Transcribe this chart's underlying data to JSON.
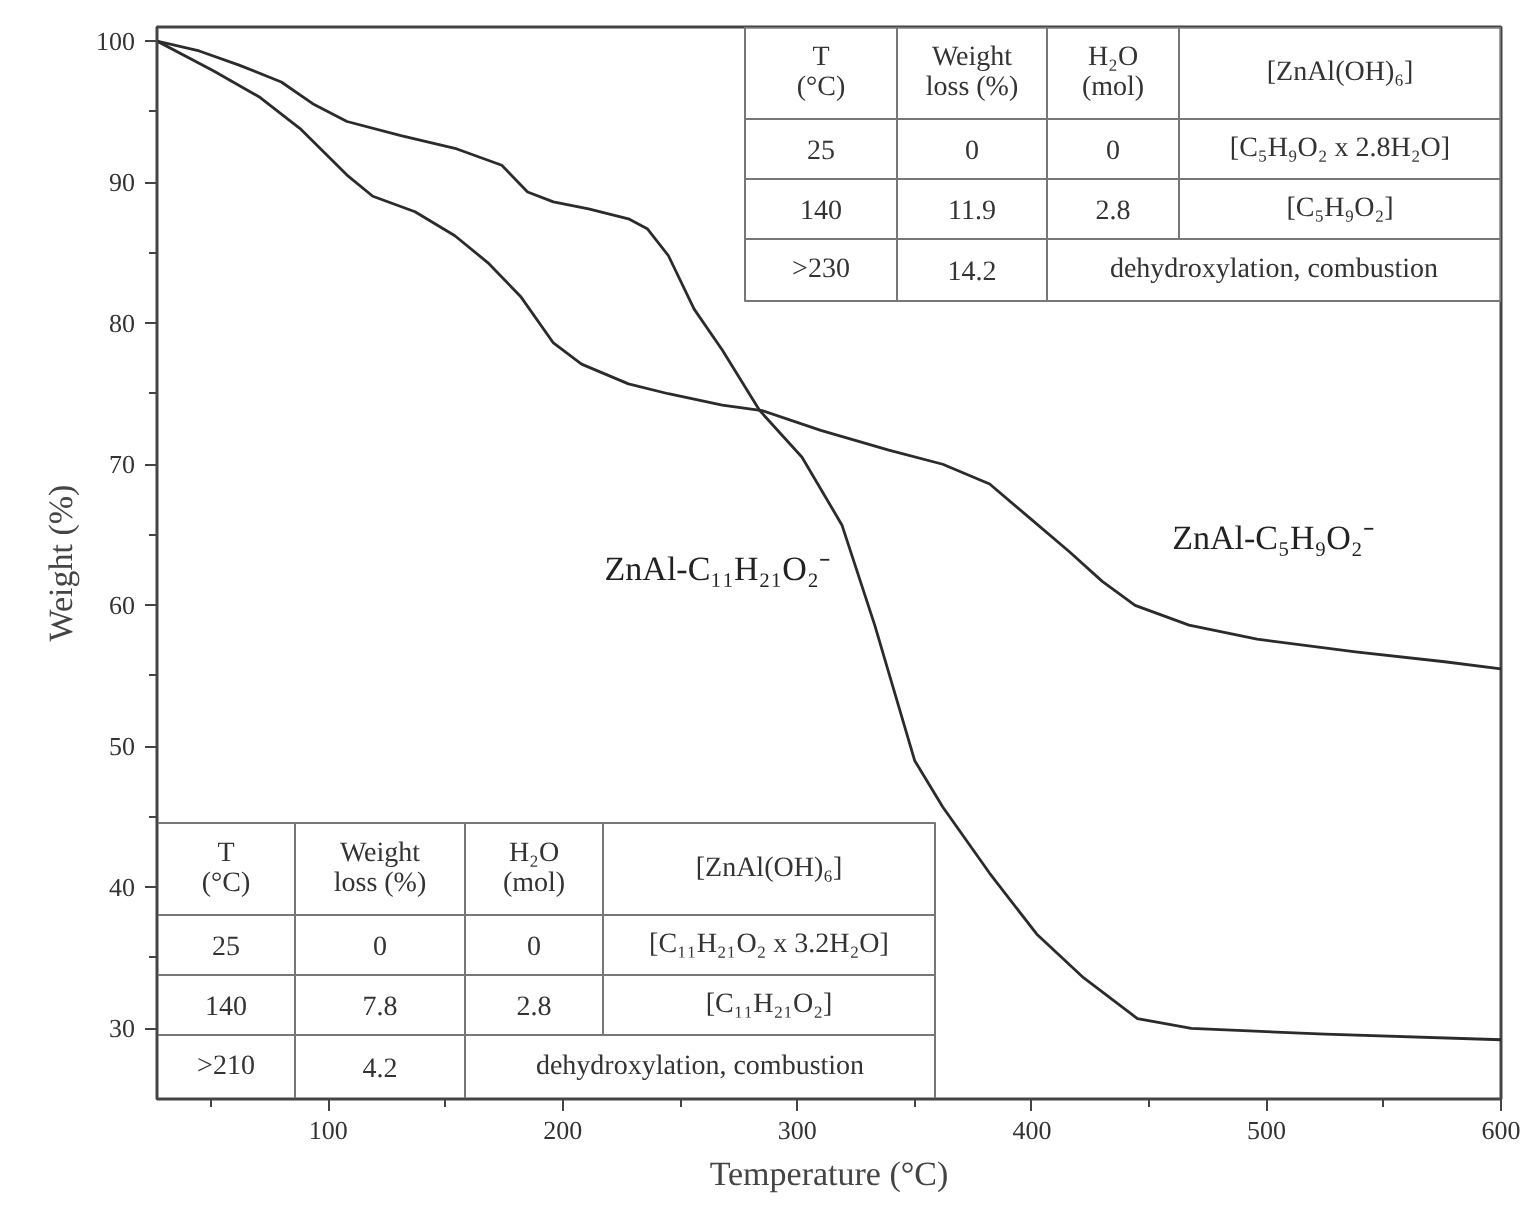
{
  "chart_data": {
    "type": "line",
    "xlabel": "Temperature (°C)",
    "ylabel": "Weight (%)",
    "xlim": [
      27,
      600
    ],
    "ylim": [
      25,
      101
    ],
    "xticks": [
      {
        "value": 50,
        "label": null
      },
      100,
      {
        "value": 150,
        "label": null
      },
      200,
      {
        "value": 250,
        "label": null
      },
      300,
      {
        "value": 350,
        "label": null
      },
      400,
      {
        "value": 450,
        "label": null
      },
      500,
      {
        "value": 550,
        "label": null
      },
      600
    ],
    "yticks": [
      30,
      {
        "value": 35,
        "label": null
      },
      40,
      {
        "value": 45,
        "label": null
      },
      50,
      {
        "value": 55,
        "label": null
      },
      60,
      {
        "value": 65,
        "label": null
      },
      70,
      {
        "value": 75,
        "label": null
      },
      80,
      {
        "value": 85,
        "label": null
      },
      90,
      {
        "value": 95,
        "label": null
      },
      100
    ],
    "grid": false,
    "legend": false,
    "marker": "none",
    "line_style": "solid",
    "series": [
      {
        "name": "ZnAl-C₁₁H₂₁O₂⁻",
        "color": "#2b2b2b",
        "x": [
          27,
          45,
          62,
          80,
          94,
          108,
          131,
          154,
          174,
          185,
          196,
          211,
          228,
          236,
          245,
          256,
          268,
          284,
          302,
          319,
          333,
          350,
          362,
          382,
          402,
          422,
          445,
          468,
          525,
          600
        ],
        "values": [
          100,
          99.3,
          98.3,
          97.1,
          95.5,
          94.3,
          93.3,
          92.4,
          91.2,
          89.3,
          88.6,
          88.1,
          87.4,
          86.7,
          84.8,
          81.0,
          78.1,
          73.8,
          70.5,
          65.7,
          58.6,
          49.0,
          45.7,
          41.0,
          36.7,
          33.6,
          30.7,
          30.0,
          29.6,
          29.2
        ]
      },
      {
        "name": "ZnAl-C₅H₉O₂⁻",
        "color": "#2b2b2b",
        "x": [
          27,
          51,
          71,
          88,
          108,
          119,
          137,
          154,
          168,
          182,
          196,
          208,
          228,
          245,
          268,
          285,
          310,
          339,
          362,
          382,
          399,
          416,
          430,
          444,
          467,
          496,
          538,
          576,
          600
        ],
        "values": [
          100,
          97.9,
          96.0,
          93.8,
          90.5,
          89.0,
          87.9,
          86.2,
          84.3,
          81.9,
          78.6,
          77.1,
          75.7,
          75.0,
          74.2,
          73.8,
          72.4,
          71.0,
          70.0,
          68.6,
          66.2,
          63.8,
          61.7,
          60.0,
          58.6,
          57.6,
          56.7,
          56.0,
          55.5
        ]
      }
    ],
    "annotations": [
      "T\n(°C)",
      "Weight\nloss (%)",
      "H₂O\n(mol)",
      "[ZnAl(OH)₆]",
      "25",
      "0",
      "0",
      "[C₅H₉O₂ x 2.8H₂O]",
      "140",
      "11.9",
      "2.8",
      "[C₅H₉O₂]",
      ">230",
      "14.2",
      "dehydroxylation, combustion",
      "T\n(°C)",
      "Weight\nloss (%)",
      "H₂O\n(mol)",
      "[ZnAl(OH)₆]",
      "25",
      "0",
      "0",
      "[C₁₁H₂₁O₂ x 3.2H₂O]",
      "140",
      "7.8",
      "2.8",
      "[C₁₁H₂₁O₂]",
      ">210",
      "4.2",
      "dehydroxylation, combustion"
    ]
  }
}
